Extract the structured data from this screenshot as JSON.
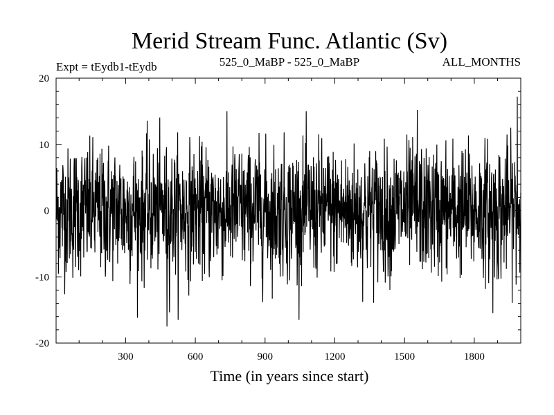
{
  "chart_data": {
    "type": "line",
    "title": "Merid Stream Func. Atlantic (Sv)",
    "subtitle_left": "Expt = tEydb1-tEydb",
    "subtitle_center": "525_0_MaBP - 525_0_MaBP",
    "subtitle_right": "ALL_MONTHS",
    "xlabel": "Time (in years since start)",
    "ylabel": "",
    "xlim": [
      1,
      2000
    ],
    "ylim": [
      -20,
      20
    ],
    "x_ticks": [
      300,
      600,
      900,
      1200,
      1500,
      1800
    ],
    "y_ticks": [
      -20,
      -10,
      0,
      10,
      20
    ],
    "grid": false,
    "series": [
      {
        "color": "#000000",
        "n_points": 2000,
        "approx_mean": 0.0,
        "approx_std": 5.0,
        "notable_points": [
          {
            "x": 478,
            "y": -17.5
          },
          {
            "x": 1555,
            "y": 15.2
          },
          {
            "x": 1985,
            "y": 17.2
          },
          {
            "x": 1880,
            "y": -15.5
          }
        ]
      }
    ]
  }
}
